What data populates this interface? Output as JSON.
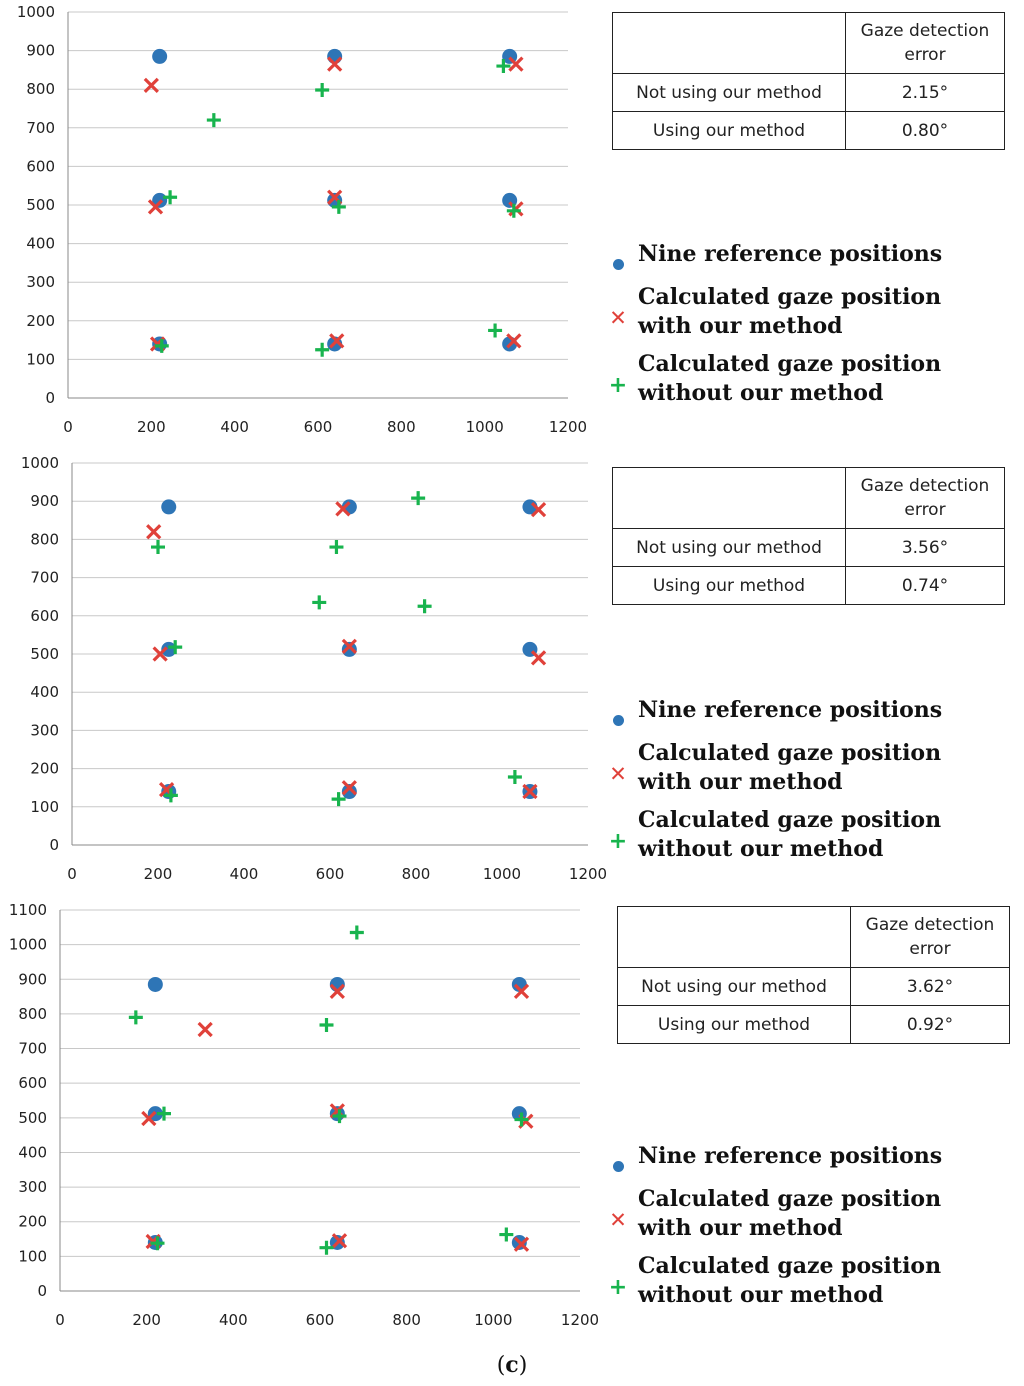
{
  "colors": {
    "reference": "#2e75b6",
    "with_method": "#e0413a",
    "without_method": "#18b44e",
    "grid": "#c8c8c8"
  },
  "table_header": "Gaze detection error",
  "legend": {
    "reference": "Nine reference  positions",
    "with_line1": "Calculated gaze position",
    "with_line2": "with our method",
    "without_line1": "Calculated gaze position",
    "without_line2": "without our method"
  },
  "caption": {
    "open": "(",
    "letter": "c",
    "close": ")"
  },
  "chart_data": [
    {
      "type": "scatter",
      "xlim": [
        0,
        1200
      ],
      "ylim": [
        0,
        1000
      ],
      "xticks": [
        0,
        200,
        400,
        600,
        800,
        1000,
        1200
      ],
      "yticks": [
        0,
        100,
        200,
        300,
        400,
        500,
        600,
        700,
        800,
        900,
        1000
      ],
      "series": [
        {
          "name": "Nine reference  positions",
          "marker": "circle",
          "points": [
            [
              220,
              885
            ],
            [
              640,
              885
            ],
            [
              1060,
              885
            ],
            [
              220,
              512
            ],
            [
              640,
              512
            ],
            [
              1060,
              512
            ],
            [
              220,
              140
            ],
            [
              640,
              140
            ],
            [
              1060,
              140
            ]
          ]
        },
        {
          "name": "Calculated gaze position with our method",
          "marker": "x",
          "points": [
            [
              200,
              810
            ],
            [
              640,
              865
            ],
            [
              1075,
              865
            ],
            [
              210,
              495
            ],
            [
              640,
              520
            ],
            [
              1075,
              490
            ],
            [
              215,
              140
            ],
            [
              645,
              148
            ],
            [
              1070,
              148
            ]
          ]
        },
        {
          "name": "Calculated gaze position without our method",
          "marker": "plus",
          "points": [
            [
              350,
              720
            ],
            [
              610,
              798
            ],
            [
              1045,
              860
            ],
            [
              245,
              520
            ],
            [
              650,
              495
            ],
            [
              1070,
              485
            ],
            [
              225,
              135
            ],
            [
              610,
              125
            ],
            [
              1025,
              175
            ]
          ]
        }
      ],
      "table": [
        {
          "label": "Not using  our method",
          "value": "2.15°"
        },
        {
          "label": "Using our method",
          "value": "0.80°"
        }
      ]
    },
    {
      "type": "scatter",
      "xlim": [
        0,
        1200
      ],
      "ylim": [
        0,
        1000
      ],
      "xticks": [
        0,
        200,
        400,
        600,
        800,
        1000,
        1200
      ],
      "yticks": [
        0,
        100,
        200,
        300,
        400,
        500,
        600,
        700,
        800,
        900,
        1000
      ],
      "series": [
        {
          "name": "Nine reference  positions",
          "marker": "circle",
          "points": [
            [
              225,
              885
            ],
            [
              645,
              885
            ],
            [
              1065,
              885
            ],
            [
              225,
              512
            ],
            [
              645,
              512
            ],
            [
              1065,
              512
            ],
            [
              225,
              140
            ],
            [
              645,
              140
            ],
            [
              1065,
              140
            ]
          ]
        },
        {
          "name": "Calculated gaze position with our method",
          "marker": "x",
          "points": [
            [
              190,
              820
            ],
            [
              630,
              880
            ],
            [
              1085,
              878
            ],
            [
              205,
              500
            ],
            [
              645,
              520
            ],
            [
              1085,
              490
            ],
            [
              220,
              145
            ],
            [
              645,
              150
            ],
            [
              1065,
              140
            ]
          ]
        },
        {
          "name": "Calculated gaze position without our method",
          "marker": "plus",
          "points": [
            [
              200,
              780
            ],
            [
              615,
              780
            ],
            [
              805,
              908
            ],
            [
              575,
              635
            ],
            [
              820,
              625
            ],
            [
              240,
              518
            ],
            [
              230,
              130
            ],
            [
              620,
              120
            ],
            [
              1030,
              178
            ]
          ]
        }
      ],
      "table": [
        {
          "label": "Not using  our method",
          "value": "3.56°"
        },
        {
          "label": "Using our method",
          "value": "0.74°"
        }
      ]
    },
    {
      "type": "scatter",
      "xlim": [
        0,
        1200
      ],
      "ylim": [
        0,
        1100
      ],
      "xticks": [
        0,
        200,
        400,
        600,
        800,
        1000,
        1200
      ],
      "yticks": [
        0,
        100,
        200,
        300,
        400,
        500,
        600,
        700,
        800,
        900,
        1000,
        1100
      ],
      "series": [
        {
          "name": "Nine reference  positions",
          "marker": "circle",
          "points": [
            [
              220,
              885
            ],
            [
              640,
              885
            ],
            [
              1060,
              885
            ],
            [
              220,
              512
            ],
            [
              640,
              512
            ],
            [
              1060,
              512
            ],
            [
              220,
              140
            ],
            [
              640,
              140
            ],
            [
              1060,
              140
            ]
          ]
        },
        {
          "name": "Calculated gaze position with our method",
          "marker": "x",
          "points": [
            [
              335,
              755
            ],
            [
              640,
              865
            ],
            [
              1065,
              865
            ],
            [
              205,
              498
            ],
            [
              640,
              520
            ],
            [
              1075,
              490
            ],
            [
              215,
              143
            ],
            [
              645,
              145
            ],
            [
              1065,
              135
            ]
          ]
        },
        {
          "name": "Calculated gaze position without our method",
          "marker": "plus",
          "points": [
            [
              175,
              790
            ],
            [
              615,
              768
            ],
            [
              685,
              1035
            ],
            [
              240,
              512
            ],
            [
              645,
              505
            ],
            [
              1030,
              163
            ],
            [
              225,
              138
            ],
            [
              615,
              125
            ],
            [
              1065,
              495
            ]
          ]
        }
      ],
      "table": [
        {
          "label": "Not using  our method",
          "value": "3.62°"
        },
        {
          "label": "Using our method",
          "value": "0.92°"
        }
      ]
    }
  ]
}
